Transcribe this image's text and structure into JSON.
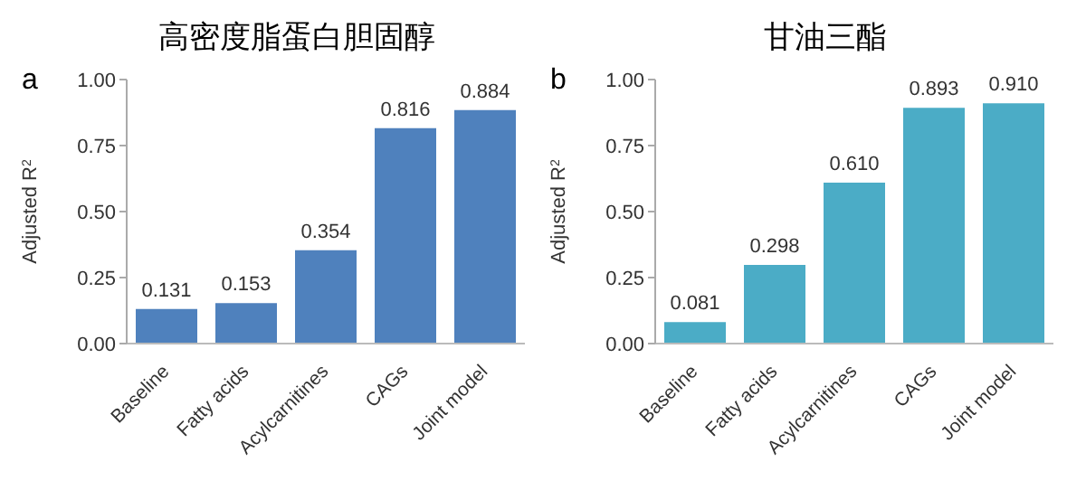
{
  "chart_data": [
    {
      "type": "bar",
      "title": "高密度脂蛋白胆固醇",
      "annotations": [
        "a"
      ],
      "ylabel": "Adjusted R$^{2}$",
      "categories": [
        "Baseline",
        "Fatty acids",
        "Acylcarnitines",
        "CAGs",
        "Joint model"
      ],
      "values": [
        0.131,
        0.153,
        0.354,
        0.816,
        0.884
      ],
      "color": "#4f81bd",
      "ylim": [
        0,
        1
      ],
      "yticks": [
        {
          "value": 0,
          "label": "0.00"
        },
        {
          "value": 0.25,
          "label": "0.25"
        },
        {
          "value": 0.5,
          "label": "0.50"
        },
        {
          "value": 0.75,
          "label": "0.75"
        },
        {
          "value": 1,
          "label": "1.00"
        }
      ],
      "data_labels": true,
      "grid": false,
      "legend": false
    },
    {
      "type": "bar",
      "title": "甘油三酯",
      "annotations": [
        "b"
      ],
      "ylabel": "Adjusted R$^{2}$",
      "categories": [
        "Baseline",
        "Fatty acids",
        "Acylcarnitines",
        "CAGs",
        "Joint model"
      ],
      "values": [
        0.081,
        0.298,
        0.61,
        0.893,
        0.91
      ],
      "value_labels": [
        "0.081",
        "0.298",
        "0.610",
        "0.893",
        "0.910"
      ],
      "color": "#4bacc6",
      "ylim": [
        0,
        1
      ],
      "yticks": [
        {
          "value": 0,
          "label": "0.00"
        },
        {
          "value": 0.25,
          "label": "0.25"
        },
        {
          "value": 0.5,
          "label": "0.50"
        },
        {
          "value": 0.75,
          "label": "0.75"
        },
        {
          "value": 1,
          "label": "1.00"
        }
      ],
      "grid": false,
      "legend": false
    }
  ]
}
